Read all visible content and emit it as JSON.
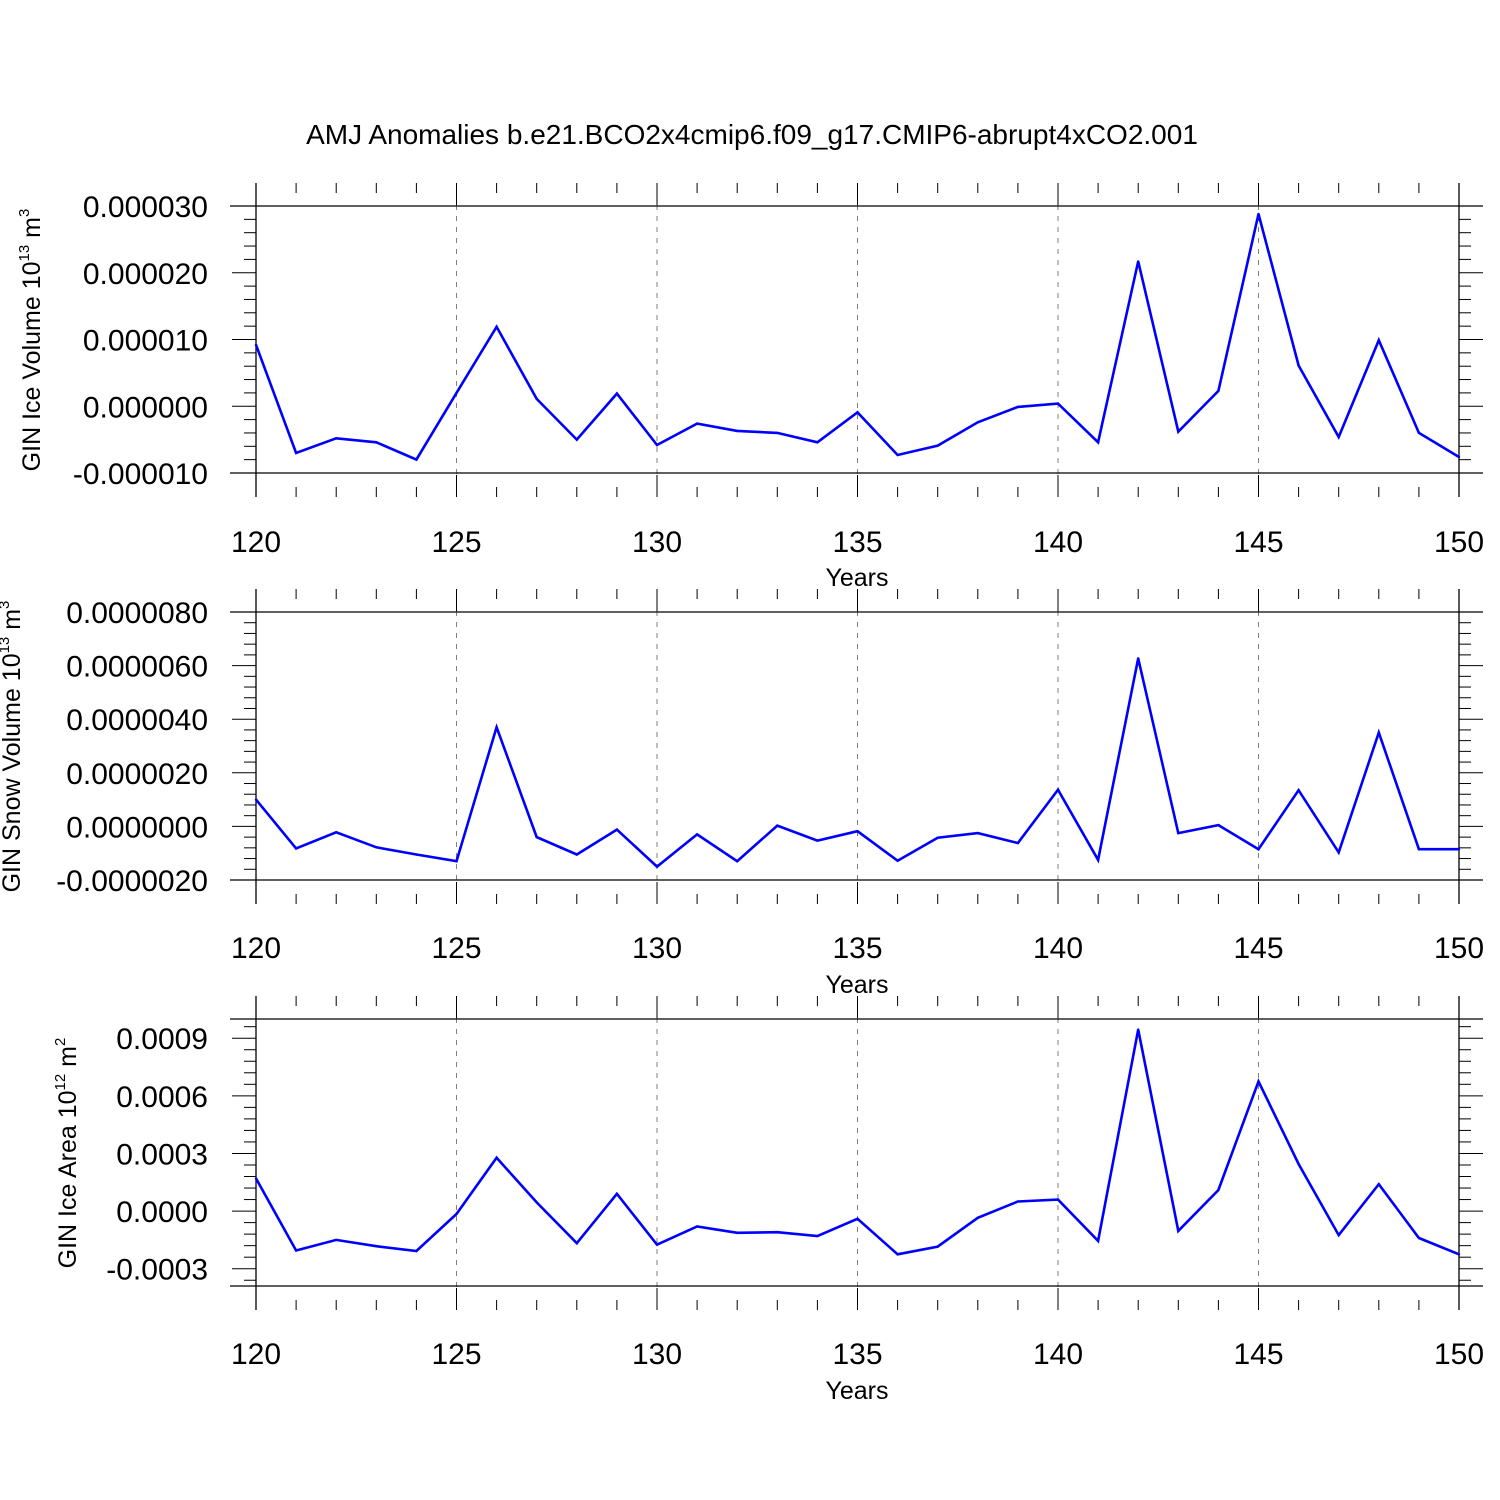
{
  "figure": {
    "title": "AMJ Anomalies b.e21.BCO2x4cmip6.f09_g17.CMIP6-abrupt4xCO2.001",
    "line_color": "#0000ff",
    "axis_color": "#000000",
    "grid_color": "#808080"
  },
  "chart_data": [
    {
      "type": "line",
      "ylabel": {
        "text": "GIN Ice Volume 10",
        "sup": "13",
        "unit": " m",
        "unit_sup": "3"
      },
      "xlabel": "Years",
      "xlim": [
        120,
        150
      ],
      "ylim": [
        -1e-05,
        3e-05
      ],
      "x_ticks": [
        "120",
        "125",
        "130",
        "135",
        "140",
        "145",
        "150"
      ],
      "y_ticks": [
        {
          "v": -1e-05,
          "label": "-0.000010"
        },
        {
          "v": 0,
          "label": "0.000000"
        },
        {
          "v": 1e-05,
          "label": "0.000010"
        },
        {
          "v": 2e-05,
          "label": "0.000020"
        },
        {
          "v": 3e-05,
          "label": "0.000030"
        }
      ],
      "grid": "vertical dashed at major x ticks",
      "x": [
        120,
        121,
        122,
        123,
        124,
        125,
        126,
        127,
        128,
        129,
        130,
        131,
        132,
        133,
        134,
        135,
        136,
        137,
        138,
        139,
        140,
        141,
        142,
        143,
        144,
        145,
        146,
        147,
        148,
        149,
        150
      ],
      "series": [
        {
          "values": [
            9.2e-06,
            -7e-06,
            -4.8e-06,
            -5.4e-06,
            -8e-06,
            2e-06,
            1.19e-05,
            1.1e-06,
            -5e-06,
            1.9e-06,
            -5.8e-06,
            -2.6e-06,
            -3.7e-06,
            -4e-06,
            -5.4e-06,
            -9e-07,
            -7.3e-06,
            -5.9e-06,
            -2.4e-06,
            -1e-07,
            4e-07,
            -5.4e-06,
            2.17e-05,
            -3.8e-06,
            2.3e-06,
            2.88e-05,
            6.1e-06,
            -4.6e-06,
            9.9e-06,
            -4e-06,
            -7.6e-06
          ]
        }
      ]
    },
    {
      "type": "line",
      "ylabel": {
        "text": "GIN Snow Volume 10",
        "sup": "13",
        "unit": " m",
        "unit_sup": "3"
      },
      "xlabel": "Years",
      "xlim": [
        120,
        150
      ],
      "ylim": [
        -2e-06,
        8e-06
      ],
      "x_ticks": [
        "120",
        "125",
        "130",
        "135",
        "140",
        "145",
        "150"
      ],
      "y_ticks": [
        {
          "v": -2e-06,
          "label": "-0.0000020"
        },
        {
          "v": 0,
          "label": "0.0000000"
        },
        {
          "v": 2e-06,
          "label": "0.0000020"
        },
        {
          "v": 4e-06,
          "label": "0.0000040"
        },
        {
          "v": 6e-06,
          "label": "0.0000060"
        },
        {
          "v": 8e-06,
          "label": "0.0000080"
        }
      ],
      "grid": "vertical dashed at major x ticks",
      "x": [
        120,
        121,
        122,
        123,
        124,
        125,
        126,
        127,
        128,
        129,
        130,
        131,
        132,
        133,
        134,
        135,
        136,
        137,
        138,
        139,
        140,
        141,
        142,
        143,
        144,
        145,
        146,
        147,
        148,
        149,
        150
      ],
      "series": [
        {
          "values": [
            1e-06,
            -8.2e-07,
            -2.2e-07,
            -7.8e-07,
            -1.05e-06,
            -1.3e-06,
            3.7e-06,
            -4e-07,
            -1.05e-06,
            -1.2e-07,
            -1.5e-06,
            -3e-07,
            -1.3e-06,
            3e-08,
            -5.3e-07,
            -1.8e-07,
            -1.28e-06,
            -4.2e-07,
            -2.5e-07,
            -6.2e-07,
            1.37e-06,
            -1.25e-06,
            6.27e-06,
            -2.5e-07,
            5e-08,
            -8.5e-07,
            1.35e-06,
            -9.7e-07,
            3.5e-06,
            -8.5e-07,
            -8.5e-07
          ]
        }
      ]
    },
    {
      "type": "line",
      "ylabel": {
        "text": "GIN Ice Area 10",
        "sup": "12",
        "unit": " m",
        "unit_sup": "2"
      },
      "xlabel": "Years",
      "xlim": [
        120,
        150
      ],
      "ylim": [
        -0.00039,
        0.001
      ],
      "x_ticks": [
        "120",
        "125",
        "130",
        "135",
        "140",
        "145",
        "150"
      ],
      "y_ticks": [
        {
          "v": -0.0003,
          "label": "-0.0003"
        },
        {
          "v": 0,
          "label": "0.0000"
        },
        {
          "v": 0.0003,
          "label": "0.0003"
        },
        {
          "v": 0.0006,
          "label": "0.0006"
        },
        {
          "v": 0.0009,
          "label": "0.0009"
        }
      ],
      "grid": "vertical dashed at major x ticks",
      "x": [
        120,
        121,
        122,
        123,
        124,
        125,
        126,
        127,
        128,
        129,
        130,
        131,
        132,
        133,
        134,
        135,
        136,
        137,
        138,
        139,
        140,
        141,
        142,
        143,
        144,
        145,
        146,
        147,
        148,
        149,
        150
      ],
      "series": [
        {
          "values": [
            0.00017,
            -0.000205,
            -0.00015,
            -0.000183,
            -0.000208,
            -1.5e-05,
            0.000278,
            4.5e-05,
            -0.000167,
            9e-05,
            -0.000175,
            -8e-05,
            -0.000113,
            -0.00011,
            -0.00013,
            -4e-05,
            -0.000225,
            -0.000185,
            -3.5e-05,
            5e-05,
            6e-05,
            -0.000155,
            0.000945,
            -0.000103,
            0.00011,
            0.000675,
            0.000245,
            -0.000125,
            0.00014,
            -0.00014,
            -0.000225
          ]
        }
      ]
    }
  ]
}
